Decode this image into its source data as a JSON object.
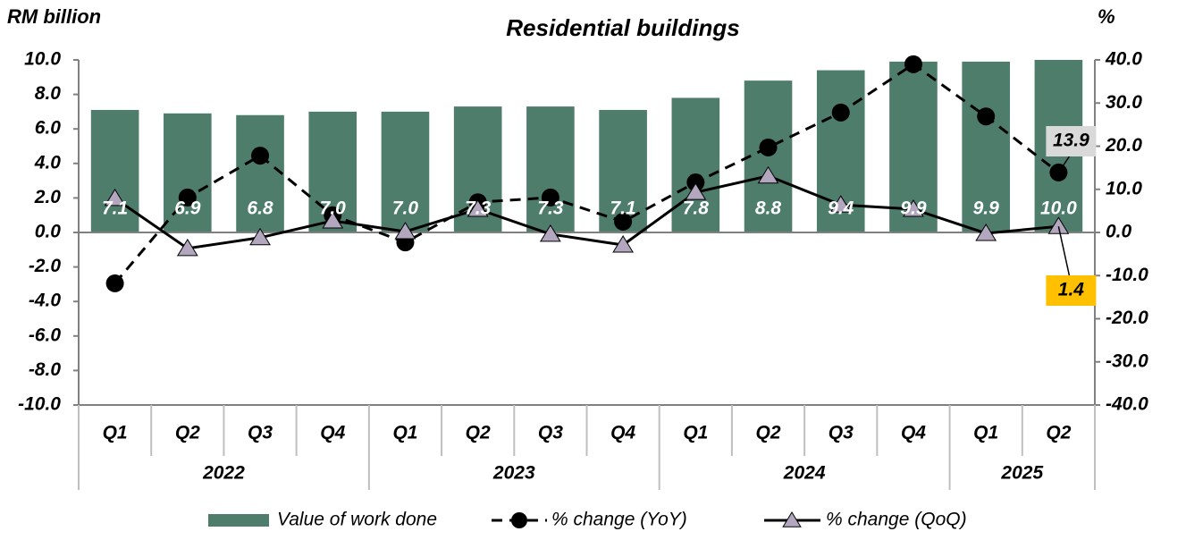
{
  "chart_data": {
    "type": "bar_line",
    "title": "Residential buildings",
    "y_label": "RM billion",
    "y2_label": "%",
    "groups": [
      {
        "label": "2022",
        "categories": [
          "Q1",
          "Q2",
          "Q3",
          "Q4"
        ]
      },
      {
        "label": "2023",
        "categories": [
          "Q1",
          "Q2",
          "Q3",
          "Q4"
        ]
      },
      {
        "label": "2024",
        "categories": [
          "Q1",
          "Q2",
          "Q3",
          "Q4"
        ]
      },
      {
        "label": "2025",
        "categories": [
          "Q1",
          "Q2"
        ]
      }
    ],
    "series": [
      {
        "name": "Value of  work done",
        "type": "bar",
        "color": "#4e7d6c",
        "values": [
          7.1,
          6.9,
          6.8,
          7.0,
          7.0,
          7.3,
          7.3,
          7.1,
          7.8,
          8.8,
          9.4,
          9.9,
          9.9,
          10.0
        ],
        "value_labels": [
          "7.1",
          "6.9",
          "6.8",
          "7.0",
          "7.0",
          "7.3",
          "7.3",
          "7.1",
          "7.8",
          "8.8",
          "9.4",
          "9.9",
          "9.9",
          "10.0"
        ]
      },
      {
        "name": "% change (YoY)",
        "type": "line",
        "axis": "y2",
        "color": "#000000",
        "dashed": true,
        "marker": "circle",
        "values": [
          -11.8,
          8.1,
          17.8,
          4.0,
          -2.3,
          7.0,
          8.1,
          2.5,
          11.6,
          19.7,
          27.8,
          39.0,
          26.9,
          13.9
        ]
      },
      {
        "name": "% change (QoQ)",
        "type": "line",
        "axis": "y2",
        "color": "#000000",
        "marker_color": "#b3a6bf",
        "dashed": false,
        "marker": "triangle",
        "values": [
          7.9,
          -3.7,
          -1.2,
          2.7,
          0.2,
          5.4,
          -0.4,
          -2.9,
          9.3,
          13.1,
          6.4,
          5.4,
          -0.2,
          1.4
        ]
      }
    ],
    "annotations": [
      {
        "series": 1,
        "index": 13,
        "color": "#d9d9d9"
      },
      {
        "series": 2,
        "index": 13,
        "color": "#ffc000"
      }
    ],
    "ylim": [
      -10,
      10
    ],
    "yticks": [
      {
        "value": -10,
        "label": "-10.0"
      },
      {
        "value": -8,
        "label": "-8.0"
      },
      {
        "value": -6,
        "label": "-6.0"
      },
      {
        "value": -4,
        "label": "-4.0"
      },
      {
        "value": -2,
        "label": "-2.0"
      },
      {
        "value": 0,
        "label": "0.0"
      },
      {
        "value": 2,
        "label": "2.0"
      },
      {
        "value": 4,
        "label": "4.0"
      },
      {
        "value": 6,
        "label": "6.0"
      },
      {
        "value": 8,
        "label": "8.0"
      },
      {
        "value": 10,
        "label": "10.0"
      }
    ],
    "y2lim": [
      -40,
      40
    ],
    "y2ticks": [
      {
        "value": -40,
        "label": "-40.0"
      },
      {
        "value": -30,
        "label": "-30.0"
      },
      {
        "value": -20,
        "label": "-20.0"
      },
      {
        "value": -10,
        "label": "-10.0"
      },
      {
        "value": 0,
        "label": "0.0"
      },
      {
        "value": 10,
        "label": "10.0"
      },
      {
        "value": 20,
        "label": "20.0"
      },
      {
        "value": 30,
        "label": "30.0"
      },
      {
        "value": 40,
        "label": "40.0"
      }
    ]
  }
}
